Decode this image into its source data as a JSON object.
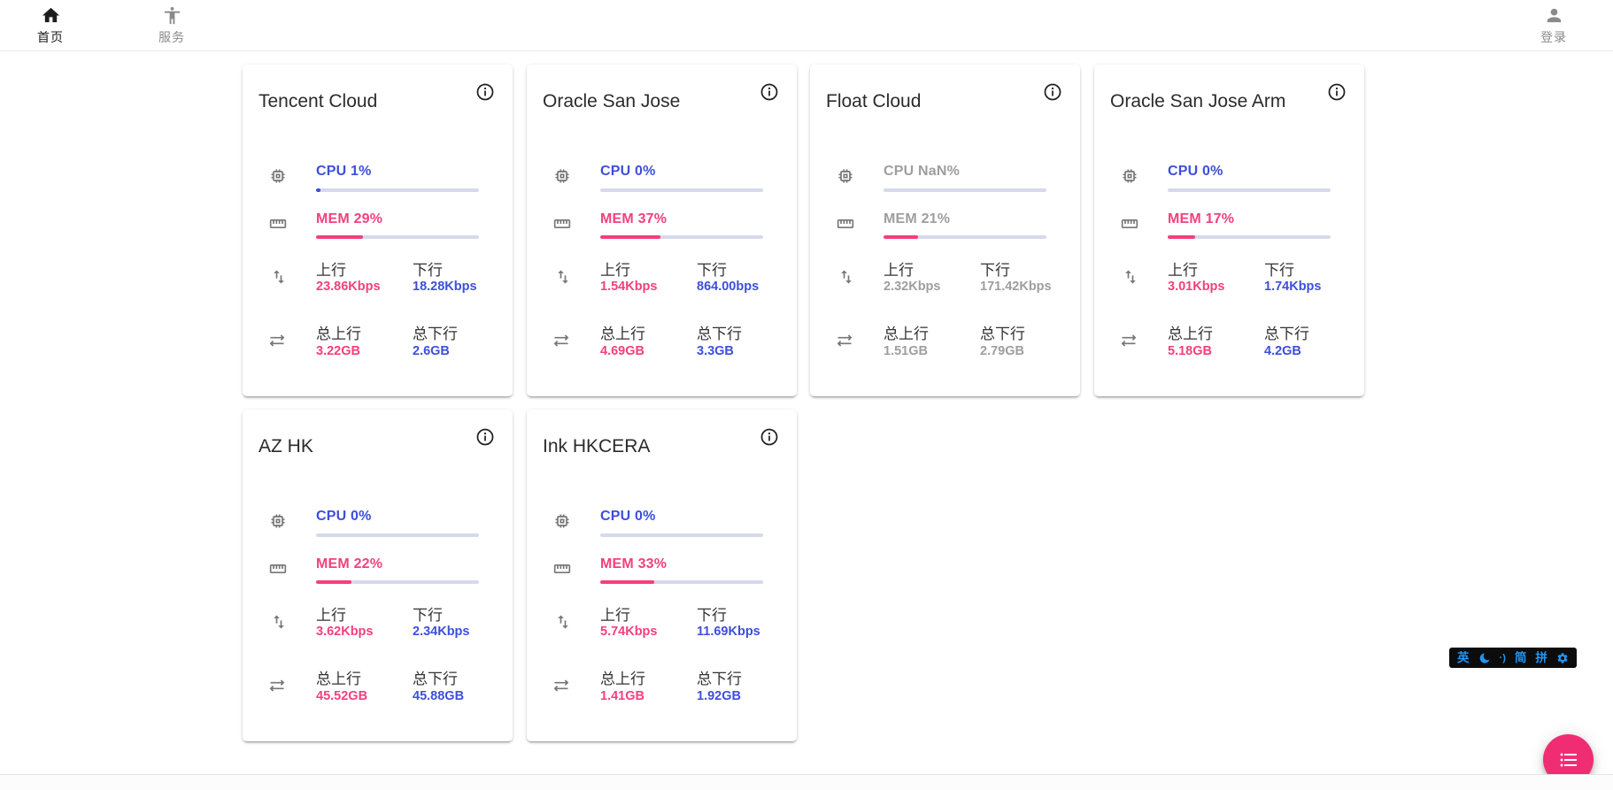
{
  "header": {
    "nav": [
      {
        "label": "首页",
        "icon": "home-icon",
        "active": true
      },
      {
        "label": "服务",
        "icon": "accessibility-icon",
        "active": false
      }
    ],
    "login": {
      "label": "登录",
      "icon": "person-icon"
    }
  },
  "labels": {
    "up": "上行",
    "down": "下行",
    "total_up": "总上行",
    "total_down": "总下行"
  },
  "servers": [
    {
      "name": "Tencent Cloud",
      "cpu_text": "CPU 1%",
      "cpu_pct": 1,
      "mem_text": "MEM 29%",
      "mem_pct": 29,
      "up": "23.86Kbps",
      "down": "18.28Kbps",
      "total_up": "3.22GB",
      "total_down": "2.6GB",
      "muted": false
    },
    {
      "name": "Oracle San Jose",
      "cpu_text": "CPU 0%",
      "cpu_pct": 0,
      "mem_text": "MEM 37%",
      "mem_pct": 37,
      "up": "1.54Kbps",
      "down": "864.00bps",
      "total_up": "4.69GB",
      "total_down": "3.3GB",
      "muted": false
    },
    {
      "name": "Float Cloud",
      "cpu_text": "CPU NaN%",
      "cpu_pct": 0,
      "mem_text": "MEM 21%",
      "mem_pct": 21,
      "up": "2.32Kbps",
      "down": "171.42Kbps",
      "total_up": "1.51GB",
      "total_down": "2.79GB",
      "muted": true
    },
    {
      "name": "Oracle San Jose Arm",
      "cpu_text": "CPU 0%",
      "cpu_pct": 0,
      "mem_text": "MEM 17%",
      "mem_pct": 17,
      "up": "3.01Kbps",
      "down": "1.74Kbps",
      "total_up": "5.18GB",
      "total_down": "4.2GB",
      "muted": false
    },
    {
      "name": "AZ HK",
      "cpu_text": "CPU 0%",
      "cpu_pct": 0,
      "mem_text": "MEM 22%",
      "mem_pct": 22,
      "up": "3.62Kbps",
      "down": "2.34Kbps",
      "total_up": "45.52GB",
      "total_down": "45.88GB",
      "muted": false
    },
    {
      "name": "Ink HKCERA",
      "cpu_text": "CPU 0%",
      "cpu_pct": 0,
      "mem_text": "MEM 33%",
      "mem_pct": 33,
      "up": "5.74Kbps",
      "down": "11.69Kbps",
      "total_up": "1.41GB",
      "total_down": "1.92GB",
      "muted": false
    }
  ],
  "ime": {
    "english": "英",
    "punct": "·)",
    "simplified": "简",
    "pinyin": "拼"
  },
  "colors": {
    "blue": "#3d4fdb",
    "pink": "#f43f7c",
    "muted_gray": "#9e9e9e",
    "bar_track": "#d6d9ec",
    "fab_pink": "#f02d72",
    "ime_blue": "#2196f3"
  }
}
